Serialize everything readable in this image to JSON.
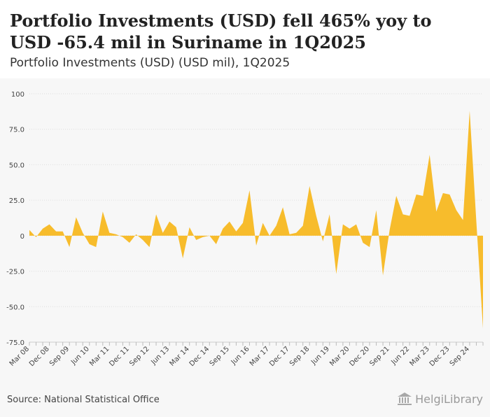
{
  "header": {
    "title": "Portfolio Investments (USD) fell 465% yoy to USD -65.4 mil in Suriname in 1Q2025",
    "subtitle": "Portfolio Investments (USD) (USD mil), 1Q2025"
  },
  "footer": {
    "source": "Source: National Statistical Office",
    "brand": "HelgiLibrary"
  },
  "colors": {
    "fill": "#f7bc2c",
    "plot_background": "#f7f7f7",
    "grid": "#dedede",
    "tick_text": "#444444"
  },
  "icons": {
    "brand_logo": "library-building-icon"
  },
  "chart_data": {
    "type": "area",
    "title": "Portfolio Investments (USD) fell 465% yoy to USD -65.4 mil in Suriname in 1Q2025",
    "subtitle": "Portfolio Investments (USD) (USD mil), 1Q2025",
    "xlabel": "",
    "ylabel": "",
    "ylim": [
      -75,
      100
    ],
    "yticks": [
      100,
      75,
      50,
      25,
      0,
      -25,
      -50,
      -75
    ],
    "ytick_labels": [
      "100",
      "75.0",
      "50.0",
      "25.0",
      "0",
      "-25.0",
      "-50.0",
      "-75.0"
    ],
    "grid": true,
    "legend": "none",
    "categories": [
      "Mar 08",
      "Jun 08",
      "Sep 08",
      "Dec 08",
      "Mar 09",
      "Jun 09",
      "Sep 09",
      "Dec 09",
      "Mar 10",
      "Jun 10",
      "Sep 10",
      "Dec 10",
      "Mar 11",
      "Jun 11",
      "Sep 11",
      "Dec 11",
      "Mar 12",
      "Jun 12",
      "Sep 12",
      "Dec 12",
      "Mar 13",
      "Jun 13",
      "Sep 13",
      "Dec 13",
      "Mar 14",
      "Jun 14",
      "Sep 14",
      "Dec 14",
      "Mar 15",
      "Jun 15",
      "Sep 15",
      "Dec 15",
      "Mar 16",
      "Jun 16",
      "Sep 16",
      "Dec 16",
      "Mar 17",
      "Jun 17",
      "Sep 17",
      "Dec 17",
      "Mar 18",
      "Jun 18",
      "Sep 18",
      "Dec 18",
      "Mar 19",
      "Jun 19",
      "Sep 19",
      "Dec 19",
      "Mar 20",
      "Jun 20",
      "Sep 20",
      "Dec 20",
      "Mar 21",
      "Jun 21",
      "Sep 21",
      "Dec 21",
      "Mar 22",
      "Jun 22",
      "Sep 22",
      "Dec 22",
      "Mar 23",
      "Jun 23",
      "Sep 23",
      "Dec 23",
      "Mar 24",
      "Jun 24",
      "Sep 24",
      "Dec 24",
      "Mar 25"
    ],
    "x_tick_labels": [
      "Mar 08",
      "Dec 08",
      "Sep 09",
      "Jun 10",
      "Mar 11",
      "Dec 11",
      "Sep 12",
      "Jun 13",
      "Mar 14",
      "Dec 14",
      "Sep 15",
      "Jun 16",
      "Mar 17",
      "Dec 17",
      "Sep 18",
      "Jun 19",
      "Mar 20",
      "Dec 20",
      "Sep 21",
      "Jun 22",
      "Mar 23",
      "Dec 23",
      "Sep 24"
    ],
    "series": [
      {
        "name": "Portfolio Investments (USD)",
        "values": [
          4,
          -1,
          5,
          8,
          3,
          3,
          -8,
          13,
          2,
          -6,
          -8,
          17,
          2,
          1,
          -1,
          -5,
          1,
          -3,
          -8,
          15,
          2,
          10,
          6,
          -16,
          6,
          -3,
          -1,
          0,
          -6,
          5,
          10,
          3,
          9,
          32,
          -7,
          9,
          0,
          7,
          20,
          1,
          2,
          7,
          35,
          14,
          -4,
          15,
          -27,
          8,
          5,
          8,
          -5,
          -8,
          18,
          -28,
          4,
          28,
          15,
          14,
          29,
          28,
          57,
          17,
          30,
          29,
          18,
          11,
          88,
          10,
          -65.4
        ]
      }
    ]
  }
}
